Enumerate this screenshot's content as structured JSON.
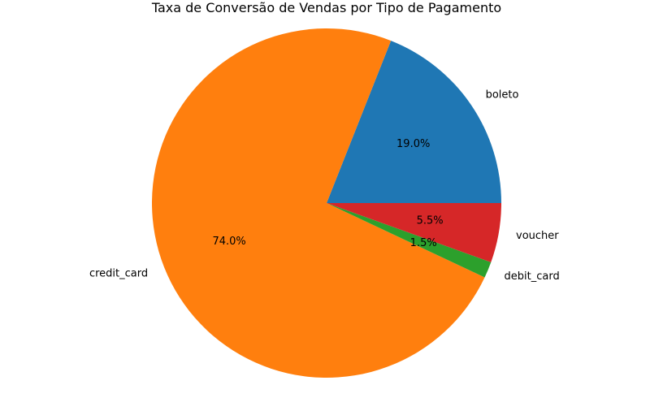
{
  "chart_data": {
    "type": "pie",
    "title": "Taxa de Conversão de Vendas por Tipo de Pagamento",
    "slices": [
      {
        "label": "boleto",
        "value": 19.0,
        "pct_text": "19.0%",
        "color": "#1f77b4"
      },
      {
        "label": "credit_card",
        "value": 74.0,
        "pct_text": "74.0%",
        "color": "#ff7f0e"
      },
      {
        "label": "debit_card",
        "value": 1.5,
        "pct_text": "1.5%",
        "color": "#2ca02c"
      },
      {
        "label": "voucher",
        "value": 5.5,
        "pct_text": "5.5%",
        "color": "#d62728"
      }
    ],
    "start_angle_deg": 0,
    "direction": "counterclockwise",
    "legend": "none"
  }
}
